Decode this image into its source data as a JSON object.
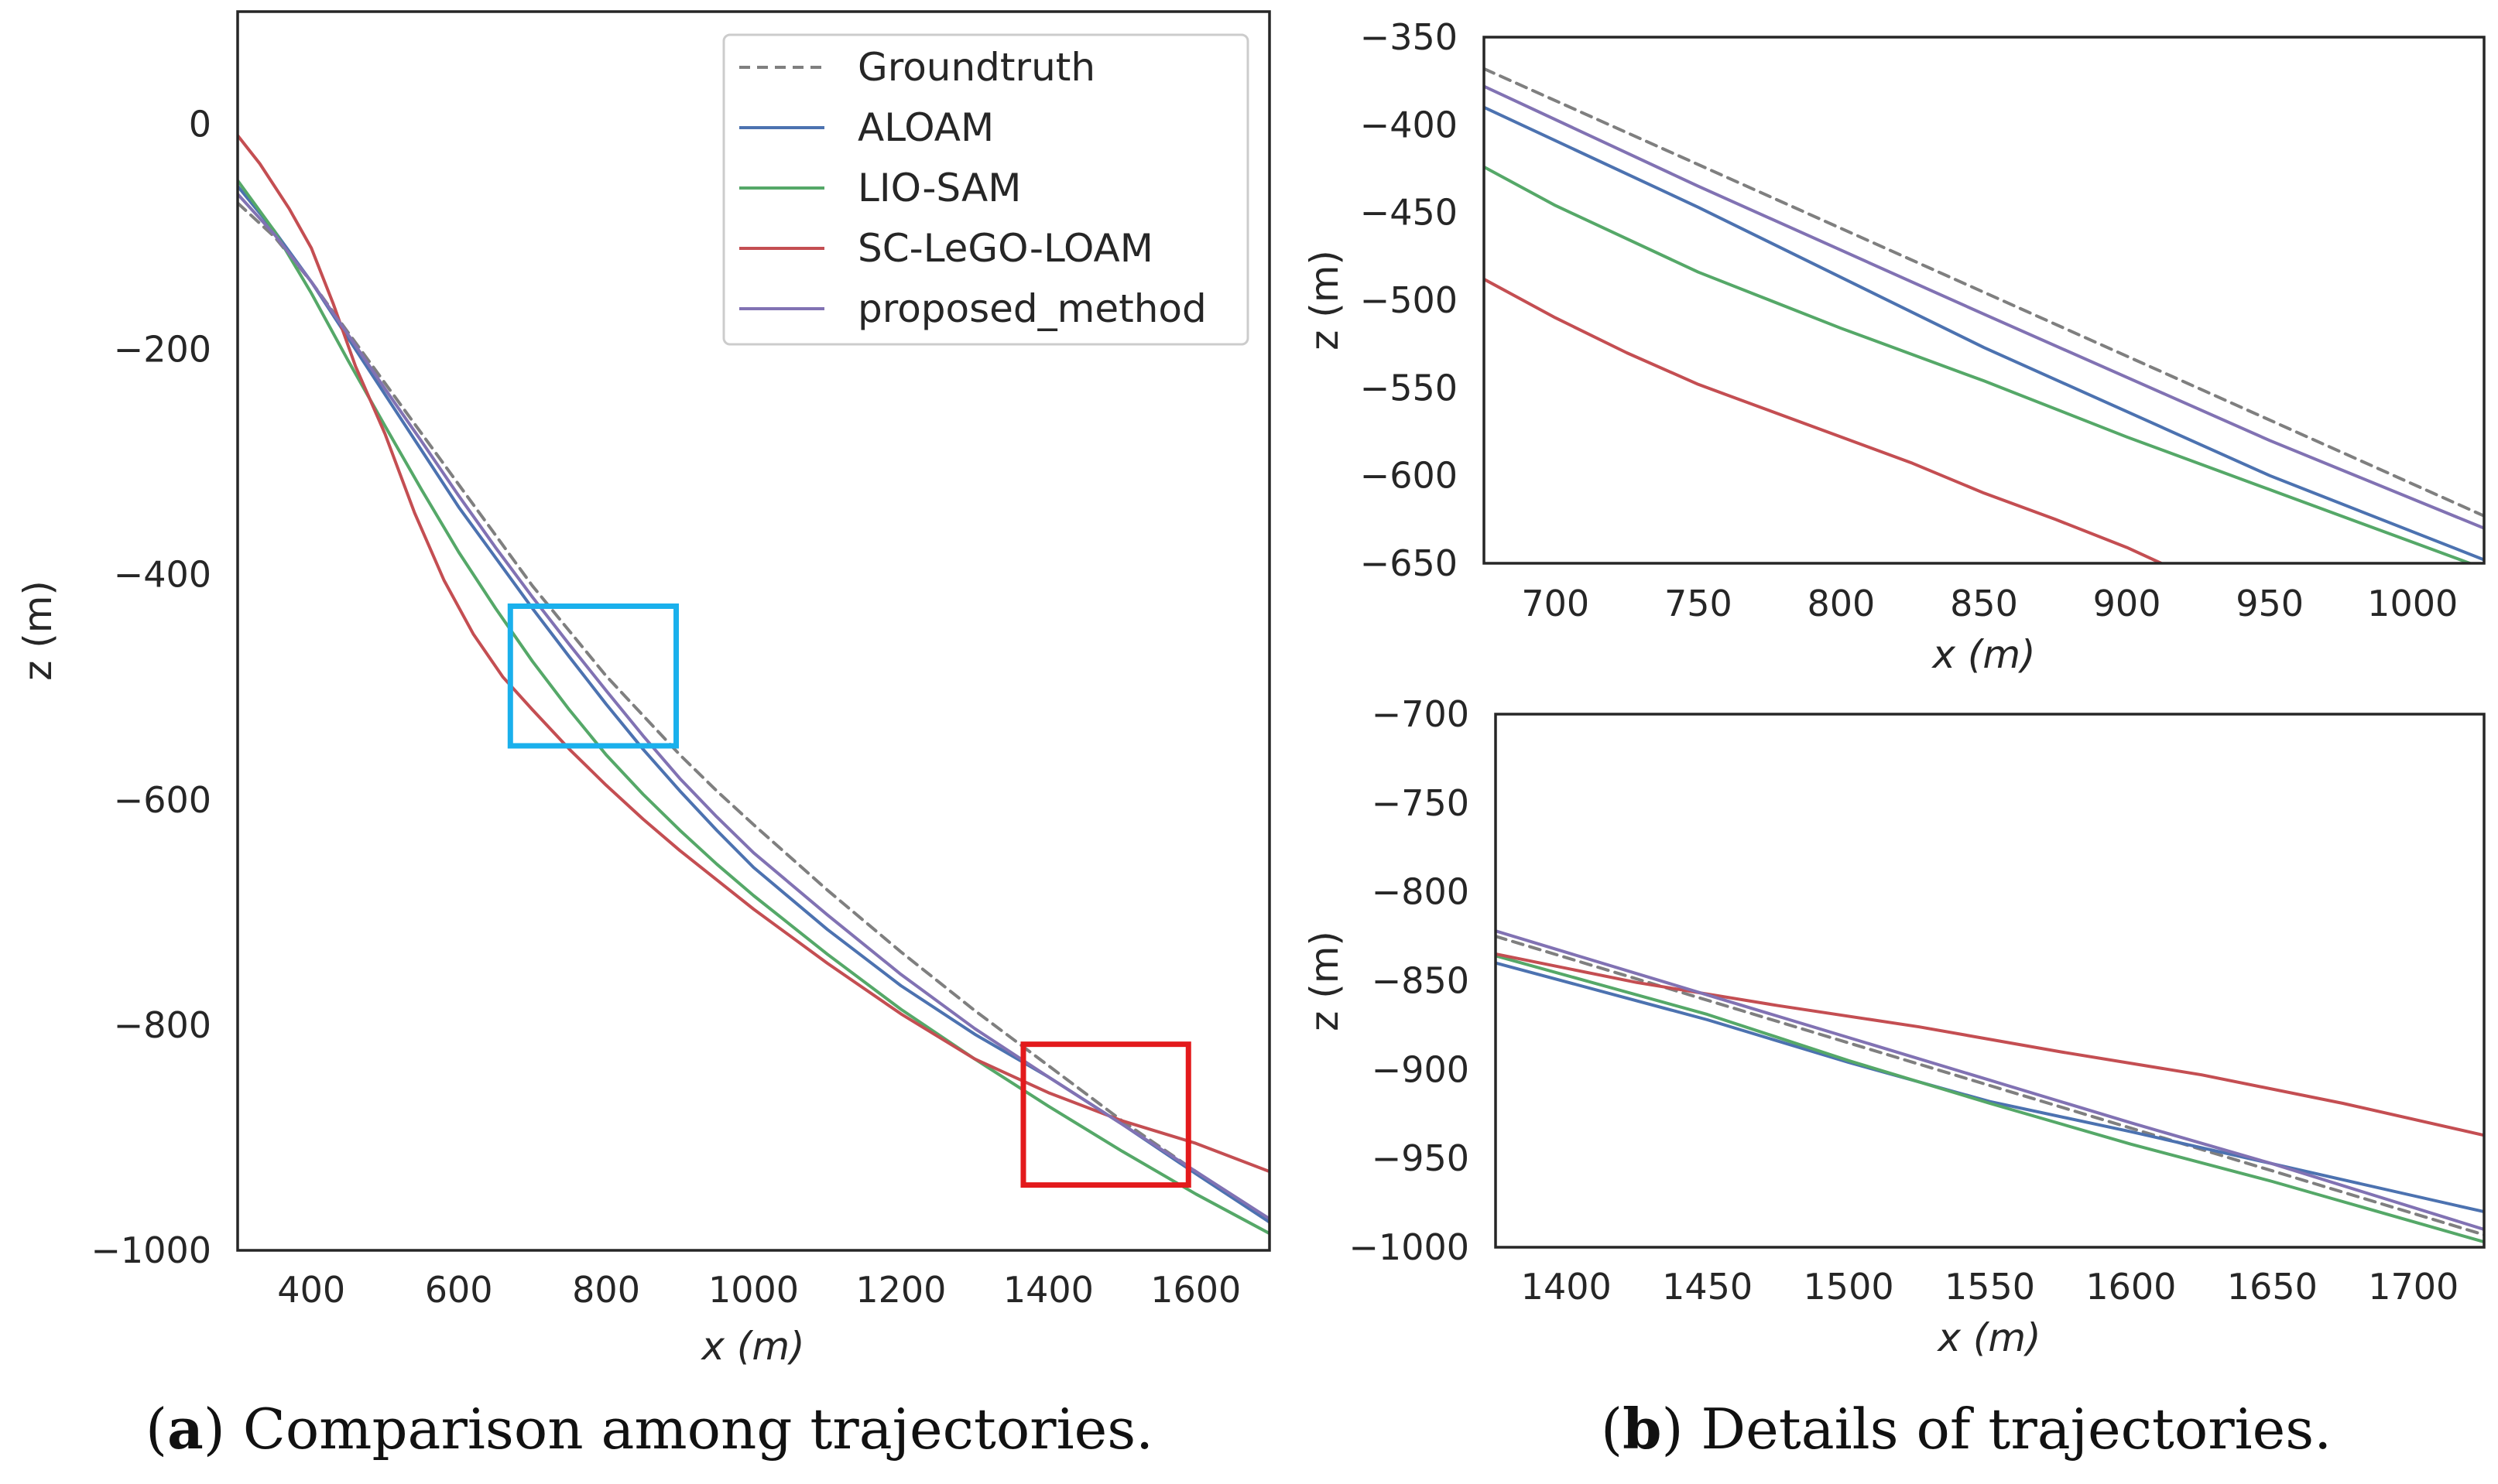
{
  "colors": {
    "Groundtruth": "#7f7f7f",
    "ALOAM": "#4c72b0",
    "LIO-SAM": "#55a868",
    "SC-LeGO-LOAM": "#c44e52",
    "proposed_method": "#8172b3",
    "box_blue": "#1ab0ec",
    "box_red": "#e31a1c"
  },
  "captions": {
    "a_label": "a",
    "a_text": "Comparison among trajectories.",
    "b_label": "b",
    "b_text": "Details of trajectories."
  },
  "chart_data": [
    {
      "id": "main",
      "type": "line",
      "title": "",
      "xlabel": "x (m)",
      "ylabel": "z (m)",
      "xlim": [
        300,
        1700
      ],
      "ylim": [
        -1000,
        100
      ],
      "xticks": [
        400,
        600,
        800,
        1000,
        1200,
        1400,
        1600
      ],
      "xtick_labels": [
        "400",
        "600",
        "800",
        "1000",
        "1200",
        "1400",
        "1600"
      ],
      "yticks": [
        0,
        -200,
        -400,
        -600,
        -800,
        -1000
      ],
      "ytick_labels": [
        "0",
        "−200",
        "−400",
        "−600",
        "−800",
        "−1000"
      ],
      "legend": {
        "position": "upper-right",
        "entries": [
          "Groundtruth",
          "ALOAM",
          "LIO-SAM",
          "SC-LeGO-LOAM",
          "proposed_method"
        ]
      },
      "zoom_boxes": [
        {
          "color": "box_blue",
          "x": [
            670,
            895
          ],
          "y": [
            -552,
            -428
          ]
        },
        {
          "color": "box_red",
          "x": [
            1366,
            1590
          ],
          "y": [
            -942,
            -817
          ]
        }
      ],
      "series": [
        {
          "name": "Groundtruth",
          "dash": true,
          "x": [
            300,
            350,
            400,
            450,
            500,
            550,
            600,
            650,
            700,
            750,
            800,
            850,
            900,
            950,
            1000,
            1100,
            1200,
            1300,
            1400,
            1500,
            1600,
            1700
          ],
          "y": [
            -70,
            -100,
            -140,
            -185,
            -230,
            -275,
            -320,
            -365,
            -410,
            -450,
            -490,
            -525,
            -560,
            -592,
            -622,
            -680,
            -735,
            -787,
            -836,
            -885,
            -930,
            -975
          ]
        },
        {
          "name": "ALOAM",
          "x": [
            300,
            350,
            400,
            450,
            500,
            550,
            600,
            650,
            700,
            750,
            800,
            850,
            900,
            950,
            1000,
            1100,
            1200,
            1300,
            1400,
            1500,
            1600,
            1700
          ],
          "y": [
            -55,
            -95,
            -140,
            -190,
            -240,
            -290,
            -340,
            -385,
            -430,
            -473,
            -515,
            -555,
            -592,
            -627,
            -660,
            -715,
            -765,
            -808,
            -846,
            -888,
            -932,
            -975
          ]
        },
        {
          "name": "LIO-SAM",
          "x": [
            300,
            350,
            400,
            450,
            500,
            550,
            600,
            650,
            700,
            750,
            800,
            850,
            900,
            950,
            1000,
            1100,
            1200,
            1300,
            1400,
            1500,
            1600,
            1700
          ],
          "y": [
            -50,
            -95,
            -150,
            -210,
            -268,
            -325,
            -380,
            -430,
            -477,
            -520,
            -560,
            -595,
            -627,
            -657,
            -685,
            -737,
            -786,
            -830,
            -872,
            -912,
            -950,
            -985
          ]
        },
        {
          "name": "SC-LeGO-LOAM",
          "x": [
            300,
            330,
            370,
            400,
            430,
            460,
            500,
            540,
            580,
            620,
            660,
            700,
            750,
            800,
            850,
            900,
            1000,
            1100,
            1200,
            1300,
            1400,
            1500,
            1600,
            1700
          ],
          "y": [
            -10,
            -35,
            -75,
            -110,
            -160,
            -215,
            -275,
            -345,
            -405,
            -453,
            -491,
            -520,
            -555,
            -587,
            -617,
            -645,
            -697,
            -745,
            -790,
            -830,
            -860,
            -885,
            -905,
            -930
          ]
        },
        {
          "name": "proposed_method",
          "x": [
            300,
            350,
            400,
            450,
            500,
            550,
            600,
            650,
            700,
            750,
            800,
            850,
            900,
            950,
            1000,
            1100,
            1200,
            1300,
            1400,
            1500,
            1600,
            1700
          ],
          "y": [
            -62,
            -98,
            -140,
            -187,
            -235,
            -282,
            -330,
            -376,
            -420,
            -462,
            -503,
            -543,
            -581,
            -615,
            -647,
            -702,
            -755,
            -803,
            -846,
            -888,
            -930,
            -972
          ]
        }
      ]
    },
    {
      "id": "detail_top",
      "type": "line",
      "title": "",
      "xlabel": "x (m)",
      "ylabel": "z (m)",
      "xlim": [
        675,
        1025
      ],
      "ylim": [
        -650,
        -350
      ],
      "xticks": [
        700,
        750,
        800,
        850,
        900,
        950,
        1000
      ],
      "xtick_labels": [
        "700",
        "750",
        "800",
        "850",
        "900",
        "950",
        "1000"
      ],
      "yticks": [
        -350,
        -400,
        -450,
        -500,
        -550,
        -600,
        -650
      ],
      "ytick_labels": [
        "−350",
        "−400",
        "−450",
        "−500",
        "−550",
        "−600",
        "−650"
      ],
      "series": [
        {
          "name": "Groundtruth",
          "dash": true,
          "x": [
            675,
            1025
          ],
          "y": [
            -368,
            -623
          ]
        },
        {
          "name": "ALOAM",
          "x": [
            675,
            750,
            850,
            950,
            1025
          ],
          "y": [
            -390,
            -447,
            -527,
            -600,
            -648
          ]
        },
        {
          "name": "LIO-SAM",
          "x": [
            675,
            700,
            750,
            800,
            850,
            900,
            950,
            1000,
            1020
          ],
          "y": [
            -424,
            -446,
            -484,
            -516,
            -546,
            -578,
            -608,
            -638,
            -650
          ]
        },
        {
          "name": "SC-LeGO-LOAM",
          "x": [
            675,
            700,
            725,
            750,
            775,
            800,
            825,
            850,
            875,
            900,
            912
          ],
          "y": [
            -488,
            -510,
            -530,
            -548,
            -563,
            -578,
            -593,
            -610,
            -625,
            -641,
            -650
          ]
        },
        {
          "name": "proposed_method",
          "x": [
            675,
            750,
            850,
            950,
            1025
          ],
          "y": [
            -378,
            -435,
            -508,
            -580,
            -630
          ]
        }
      ]
    },
    {
      "id": "detail_bottom",
      "type": "line",
      "title": "",
      "xlabel": "x (m)",
      "ylabel": "z (m)",
      "xlim": [
        1375,
        1725
      ],
      "ylim": [
        -1000,
        -700
      ],
      "xticks": [
        1400,
        1450,
        1500,
        1550,
        1600,
        1650,
        1700
      ],
      "xtick_labels": [
        "1400",
        "1450",
        "1500",
        "1550",
        "1600",
        "1650",
        "1700"
      ],
      "yticks": [
        -700,
        -750,
        -800,
        -850,
        -900,
        -950,
        -1000
      ],
      "ytick_labels": [
        "−700",
        "−750",
        "−800",
        "−850",
        "−900",
        "−950",
        "−1000"
      ],
      "series": [
        {
          "name": "Groundtruth",
          "dash": true,
          "x": [
            1375,
            1725
          ],
          "y": [
            -825,
            -993
          ]
        },
        {
          "name": "ALOAM",
          "x": [
            1375,
            1450,
            1500,
            1550,
            1600,
            1650,
            1725
          ],
          "y": [
            -840,
            -872,
            -896,
            -918,
            -935,
            -953,
            -980
          ]
        },
        {
          "name": "LIO-SAM",
          "x": [
            1375,
            1450,
            1500,
            1550,
            1600,
            1650,
            1725
          ],
          "y": [
            -836,
            -869,
            -895,
            -919,
            -942,
            -963,
            -997
          ]
        },
        {
          "name": "SC-LeGO-LOAM",
          "x": [
            1375,
            1425,
            1475,
            1525,
            1575,
            1625,
            1675,
            1725
          ],
          "y": [
            -835,
            -851,
            -864,
            -876,
            -890,
            -903,
            -919,
            -937
          ]
        },
        {
          "name": "proposed_method",
          "x": [
            1375,
            1450,
            1500,
            1550,
            1600,
            1650,
            1725
          ],
          "y": [
            -822,
            -858,
            -882,
            -906,
            -930,
            -953,
            -990
          ]
        }
      ]
    }
  ]
}
